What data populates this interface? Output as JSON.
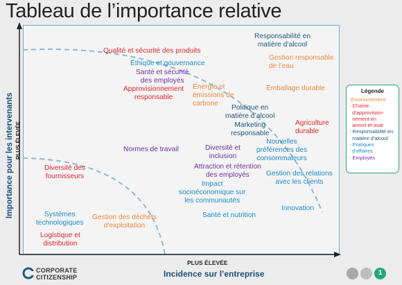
{
  "title": "Tableau de l’importance relative",
  "axes": {
    "y_label": "Importance pour les intervenants",
    "y_high": "PLUS ÉLEVÉE",
    "x_high": "PLUS ÉLEVÉE",
    "x_label": "Incidence sur l’entreprise"
  },
  "labels": {
    "qualite": "Qualité et sécurité des produits",
    "ethique": "Éthique et gouvernance",
    "sante_employes": "Santé et sécurité\ndes employés",
    "approvisionnement": "Approvisionnement\nresponsable",
    "energie": "Énergie et\némissions de\ncarbone",
    "resp_alcool": "Responsabilité en\nmatière d’alcool",
    "gestion_eau": "Gestion responsable\nde l’eau",
    "emballage": "Emballage durable",
    "politique_alcool": "Politique en\nmatière d’alcool",
    "marketing": "Marketing\nresponsable",
    "agriculture": "Agriculture\ndurable",
    "nouvelles_pref": "Nouvelles\npréférences des\nconsommateurs",
    "normes": "Normes de travail",
    "diversite_inclusion": "Diversité et\ninclusion",
    "attraction": "Attraction et rétention\ndes employés",
    "diversite_fourn": "Diversité des\nfournisseurs",
    "impact": "Impact\nsocioéconomique sur\nles communautés",
    "gestion_relations": "Gestion des relations\navec les clients",
    "systemes": "Systèmes\ntechnologiques",
    "dechets": "Gestion des déchets\nd’exploitation",
    "logistique": "Logistique et\ndistribution",
    "sante_nutrition": "Santé et nutrition",
    "innovation": "Innovation"
  },
  "legend": {
    "title": "Légende",
    "items": [
      "-Environnement",
      "- Chaîne\n  d’approvision-\n  nement en\n  amont et aval",
      "- Responsabilité en\n  matière d’alcool",
      "- Pratiques\n  d’affaires",
      "- Employés"
    ]
  },
  "footer": {
    "logo_line1": "CORPORATE",
    "logo_line2": "CITIZENSHIP",
    "page_number": "1"
  },
  "colors": {
    "environment": "#f0883d",
    "supply_chain": "#e3262b",
    "alcohol": "#1b5a7a",
    "business": "#1b8cc9",
    "employees": "#7030a0",
    "frame": "#6aa9d8",
    "legend_border": "#2aa37a",
    "page_dot": "#25a67a"
  }
}
